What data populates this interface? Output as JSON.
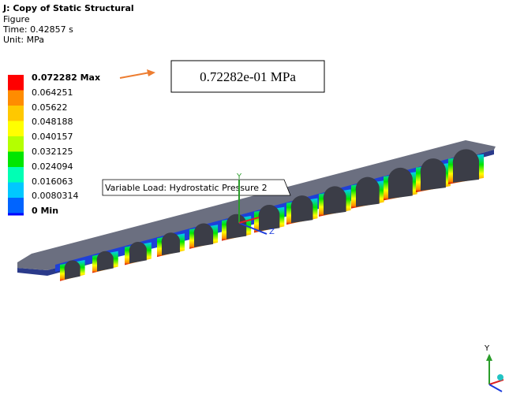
{
  "header": {
    "title": "J: Copy of Static Structural",
    "result": "Figure",
    "time": "Time: 0.42857 s",
    "unit": "Unit: MPa"
  },
  "legend": {
    "labels": [
      "0.072282 Max",
      "0.064251",
      "0.05622",
      "0.048188",
      "0.040157",
      "0.032125",
      "0.024094",
      "0.016063",
      "0.0080314",
      "0 Min"
    ]
  },
  "callout": "0.72282e-01 MPa",
  "probe_label": "Variable Load: Hydrostatic Pressure 2",
  "triad": {
    "y": "Y",
    "z": "Z"
  }
}
